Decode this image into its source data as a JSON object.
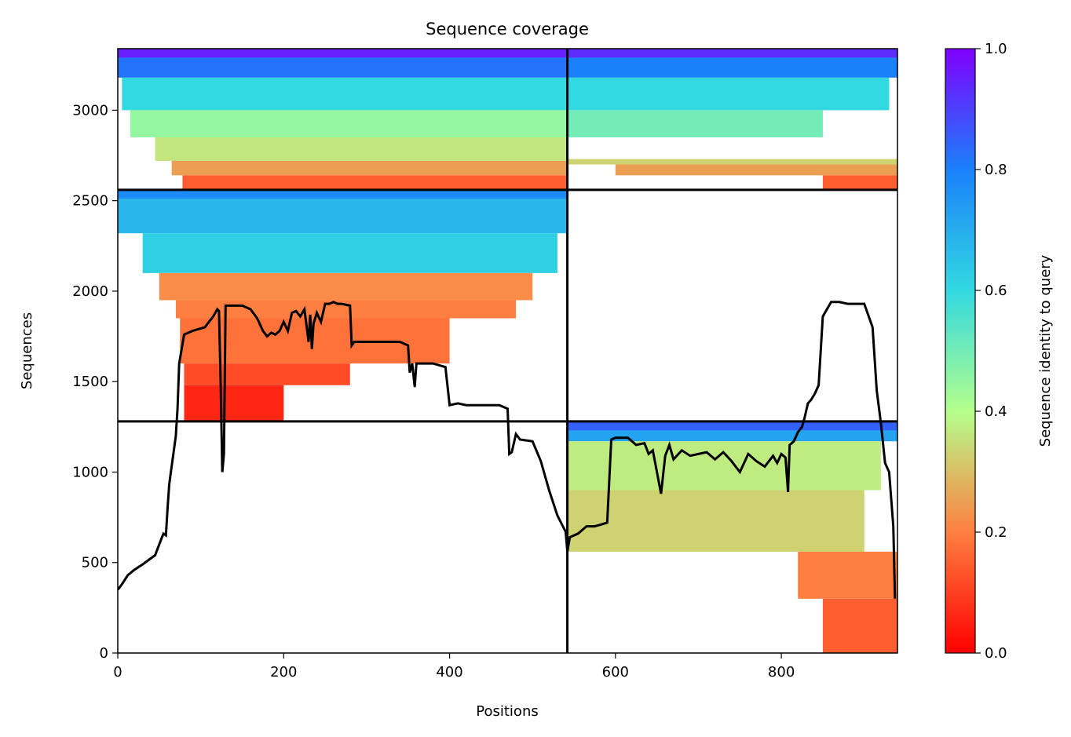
{
  "chart_data": {
    "type": "heatmap",
    "title": "Sequence coverage",
    "xlabel": "Positions",
    "ylabel": "Sequences",
    "xlim": [
      0,
      940
    ],
    "ylim": [
      0,
      3340
    ],
    "x_ticks": [
      0,
      200,
      400,
      600,
      800
    ],
    "y_ticks": [
      0,
      500,
      1000,
      1500,
      2000,
      2500,
      3000
    ],
    "colorbar": {
      "label": "Sequence identity to query",
      "colormap": "rainbow_r",
      "range": [
        0,
        1
      ],
      "ticks": [
        "0.0",
        "0.2",
        "0.4",
        "0.6",
        "0.8",
        "1.0"
      ],
      "stops": [
        {
          "v": 0.0,
          "color": "#ff0000"
        },
        {
          "v": 0.2,
          "color": "#ff7f40"
        },
        {
          "v": 0.4,
          "color": "#b4ff8c"
        },
        {
          "v": 0.6,
          "color": "#32d9e1"
        },
        {
          "v": 0.8,
          "color": "#1a81fa"
        },
        {
          "v": 1.0,
          "color": "#8000ff"
        }
      ]
    },
    "segment_boundaries": {
      "x": [
        542
      ],
      "y": [
        1280,
        2560
      ]
    },
    "blocks": [
      {
        "name": "block-chain-a-high",
        "x_range": [
          0,
          542
        ],
        "y_range": [
          2560,
          3340
        ],
        "bands": [
          {
            "y": [
              3290,
              3340
            ],
            "x": [
              0,
              542
            ],
            "identity": 0.95
          },
          {
            "y": [
              3180,
              3290
            ],
            "x": [
              0,
              542
            ],
            "identity": 0.82
          },
          {
            "y": [
              3000,
              3180
            ],
            "x": [
              5,
              542
            ],
            "identity": 0.6
          },
          {
            "y": [
              2850,
              3000
            ],
            "x": [
              15,
              542
            ],
            "identity": 0.45
          },
          {
            "y": [
              2720,
              2850
            ],
            "x": [
              45,
              542
            ],
            "identity": 0.36
          },
          {
            "y": [
              2640,
              2720
            ],
            "x": [
              65,
              542
            ],
            "identity": 0.25
          },
          {
            "y": [
              2560,
              2640
            ],
            "x": [
              78,
              542
            ],
            "identity": 0.15
          }
        ]
      },
      {
        "name": "block-chain-b-high",
        "x_range": [
          542,
          940
        ],
        "y_range": [
          2560,
          3340
        ],
        "bands": [
          {
            "y": [
              3290,
              3340
            ],
            "x": [
              542,
              940
            ],
            "identity": 0.93
          },
          {
            "y": [
              3180,
              3290
            ],
            "x": [
              542,
              940
            ],
            "identity": 0.8
          },
          {
            "y": [
              3000,
              3180
            ],
            "x": [
              542,
              930
            ],
            "identity": 0.6
          },
          {
            "y": [
              2850,
              3000
            ],
            "x": [
              542,
              850
            ],
            "identity": 0.5
          },
          {
            "y": [
              2700,
              2730
            ],
            "x": [
              542,
              940
            ],
            "identity": 0.33
          },
          {
            "y": [
              2640,
              2700
            ],
            "x": [
              600,
              940
            ],
            "identity": 0.25
          },
          {
            "y": [
              2560,
              2640
            ],
            "x": [
              850,
              940
            ],
            "identity": 0.15
          }
        ]
      },
      {
        "name": "block-chain-a-mid",
        "x_range": [
          0,
          542
        ],
        "y_range": [
          1280,
          2560
        ],
        "bands": [
          {
            "y": [
              2510,
              2560
            ],
            "x": [
              0,
              542
            ],
            "identity": 0.78
          },
          {
            "y": [
              2320,
              2510
            ],
            "x": [
              0,
              542
            ],
            "identity": 0.68
          },
          {
            "y": [
              2100,
              2320
            ],
            "x": [
              30,
              530
            ],
            "identity": 0.62
          },
          {
            "y": [
              1950,
              2100
            ],
            "x": [
              50,
              500
            ],
            "identity": 0.22
          },
          {
            "y": [
              1850,
              1950
            ],
            "x": [
              70,
              480
            ],
            "identity": 0.2
          },
          {
            "y": [
              1600,
              1850
            ],
            "x": [
              75,
              400
            ],
            "identity": 0.18
          },
          {
            "y": [
              1480,
              1600
            ],
            "x": [
              80,
              280
            ],
            "identity": 0.12
          },
          {
            "y": [
              1280,
              1480
            ],
            "x": [
              80,
              200
            ],
            "identity": 0.06
          }
        ]
      },
      {
        "name": "block-chain-b-low",
        "x_range": [
          542,
          940
        ],
        "y_range": [
          0,
          1280
        ],
        "bands": [
          {
            "y": [
              1230,
              1280
            ],
            "x": [
              542,
              940
            ],
            "identity": 0.85
          },
          {
            "y": [
              1170,
              1230
            ],
            "x": [
              542,
              940
            ],
            "identity": 0.72
          },
          {
            "y": [
              900,
              1170
            ],
            "x": [
              542,
              920
            ],
            "identity": 0.37
          },
          {
            "y": [
              560,
              900
            ],
            "x": [
              542,
              900
            ],
            "identity": 0.33
          },
          {
            "y": [
              300,
              560
            ],
            "x": [
              820,
              940
            ],
            "identity": 0.2
          },
          {
            "y": [
              0,
              300
            ],
            "x": [
              850,
              940
            ],
            "identity": 0.15
          }
        ]
      }
    ],
    "coverage_line": {
      "color": "#000000",
      "x": [
        0,
        5,
        12,
        20,
        30,
        45,
        50,
        55,
        58,
        60,
        62,
        64,
        67,
        70,
        72,
        74,
        80,
        90,
        105,
        115,
        120,
        122,
        124,
        126,
        128,
        130,
        135,
        140,
        150,
        160,
        168,
        175,
        180,
        185,
        190,
        195,
        200,
        205,
        210,
        215,
        220,
        225,
        230,
        232,
        234,
        236,
        240,
        245,
        250,
        255,
        260,
        265,
        270,
        280,
        282,
        285,
        290,
        300,
        320,
        340,
        350,
        352,
        355,
        358,
        360,
        365,
        380,
        395,
        400,
        410,
        420,
        440,
        460,
        470,
        472,
        475,
        480,
        485,
        500,
        510,
        520,
        530,
        540,
        542,
        545,
        555,
        565,
        575,
        590,
        595,
        600,
        605,
        615,
        625,
        635,
        640,
        645,
        655,
        660,
        665,
        670,
        680,
        690,
        700,
        710,
        720,
        730,
        740,
        750,
        760,
        770,
        780,
        790,
        795,
        800,
        805,
        808,
        810,
        815,
        820,
        825,
        828,
        832,
        836,
        840,
        845,
        850,
        855,
        860,
        870,
        880,
        900,
        910,
        915,
        920,
        925,
        930,
        935,
        937
      ],
      "y": [
        350,
        380,
        430,
        460,
        490,
        540,
        600,
        660,
        650,
        800,
        930,
        1000,
        1100,
        1200,
        1350,
        1600,
        1760,
        1780,
        1800,
        1860,
        1900,
        1890,
        1500,
        1000,
        1100,
        1920,
        1920,
        1920,
        1920,
        1900,
        1850,
        1780,
        1750,
        1770,
        1760,
        1780,
        1830,
        1780,
        1880,
        1890,
        1860,
        1900,
        1720,
        1870,
        1680,
        1820,
        1880,
        1830,
        1930,
        1930,
        1940,
        1930,
        1930,
        1920,
        1700,
        1720,
        1720,
        1720,
        1720,
        1720,
        1700,
        1550,
        1600,
        1470,
        1600,
        1600,
        1600,
        1580,
        1370,
        1380,
        1370,
        1370,
        1370,
        1350,
        1100,
        1110,
        1210,
        1180,
        1170,
        1060,
        900,
        760,
        670,
        560,
        640,
        660,
        700,
        700,
        720,
        1180,
        1190,
        1190,
        1190,
        1150,
        1160,
        1100,
        1120,
        880,
        1090,
        1150,
        1070,
        1120,
        1090,
        1100,
        1110,
        1070,
        1110,
        1060,
        1000,
        1100,
        1060,
        1030,
        1090,
        1050,
        1100,
        1080,
        890,
        1150,
        1170,
        1220,
        1250,
        1300,
        1380,
        1400,
        1430,
        1480,
        1860,
        1900,
        1940,
        1940,
        1930,
        1930,
        1800,
        1450,
        1270,
        1050,
        1000,
        700,
        300
      ]
    }
  }
}
